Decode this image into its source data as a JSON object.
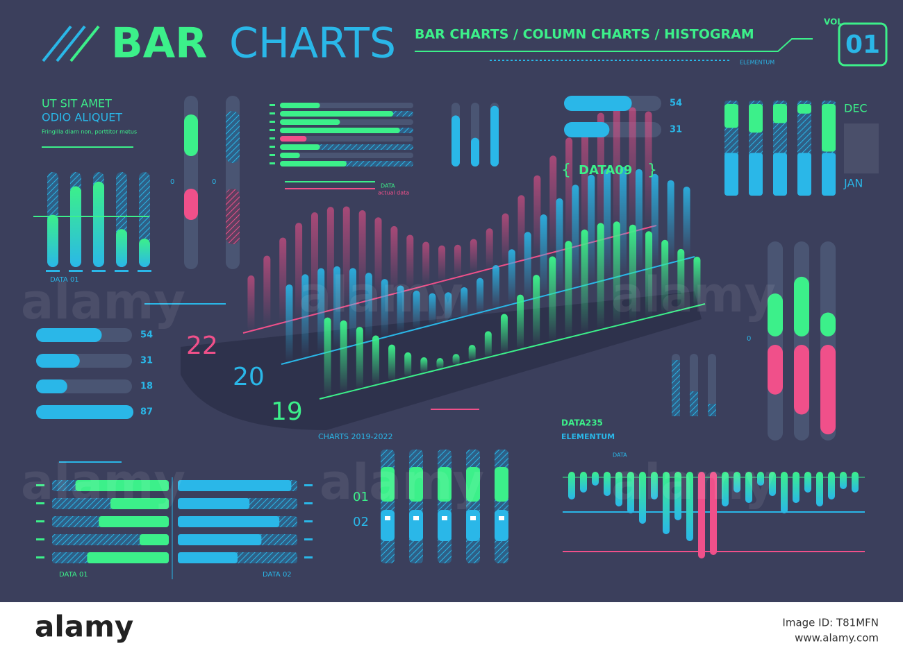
{
  "header": {
    "title_a": "BAR",
    "title_b": "CHARTS",
    "subtitle": "BAR CHARTS / COLUMN CHARTS / HISTOGRAM",
    "vol": "VOL.",
    "number": "01",
    "tag": "ELEMENTUM"
  },
  "intro": {
    "line1": "UT SIT AMET",
    "line2": "ODIO ALIQUET",
    "line3": "Fringilla diam non, porttitor metus",
    "caption": "DATA 01"
  },
  "sliders": {
    "label_a": "0",
    "label_b": "0"
  },
  "hbars": {
    "label": "DATA",
    "sublabel": "actual data"
  },
  "progress_top": {
    "values": [
      54,
      31
    ],
    "label": "DATA09"
  },
  "months": {
    "top": "DEC",
    "bottom": "JAN"
  },
  "main_chart": {
    "years": [
      "22",
      "20",
      "19"
    ],
    "caption": "CHARTS 2019-2022"
  },
  "progress_left": {
    "values": [
      54,
      31,
      18,
      87
    ]
  },
  "right_sliders": {
    "label": "0"
  },
  "histogram": {
    "title": "DATA235",
    "subtitle": "ELEMENTUM",
    "label": "DATA"
  },
  "columns_bottom": {
    "labels": [
      "01",
      "02"
    ]
  },
  "bars_bottom": {
    "caption_a": "DATA 01",
    "caption_b": "DATA 02"
  },
  "watermark": {
    "logo": "alamy",
    "image_id": "Image ID: T81MFN",
    "site": "www.alamy.com"
  }
}
